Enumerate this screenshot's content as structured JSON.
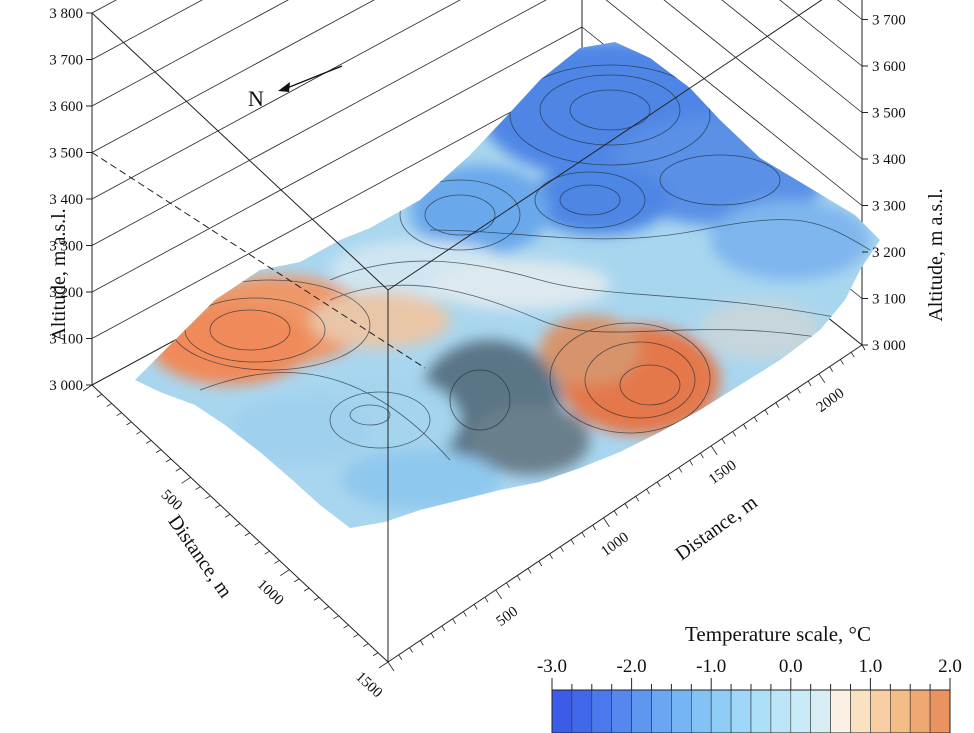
{
  "chart_data": {
    "type": "surface-3d",
    "title": "",
    "north_label": "N",
    "z_axis": {
      "label": "Altitude, m a.s.l.",
      "range": [
        3000,
        3800
      ],
      "tick_values": [
        3000,
        3100,
        3200,
        3300,
        3400,
        3500,
        3600,
        3700,
        3800
      ],
      "tick_labels": [
        "3 000",
        "3 100",
        "3 200",
        "3 300",
        "3 400",
        "3 500",
        "3 600",
        "3 700",
        "3 800"
      ]
    },
    "x_axis": {
      "label": "Distance, m",
      "range": [
        0,
        1500
      ],
      "tick_values": [
        500,
        1000,
        1500
      ],
      "tick_labels": [
        "500",
        "1000",
        "1500"
      ]
    },
    "y_axis": {
      "label": "Distance, m",
      "range": [
        0,
        2200
      ],
      "tick_values": [
        500,
        1000,
        1500,
        2000
      ],
      "tick_labels": [
        "500",
        "1000",
        "1500",
        "2000"
      ]
    },
    "colorbar": {
      "title": "Temperature scale, °C",
      "range": [
        -3.0,
        2.0
      ],
      "tick_values": [
        -3.0,
        -2.0,
        -1.0,
        0.0,
        1.0,
        2.0
      ],
      "tick_labels": [
        "-3.0",
        "-2.0",
        "-1.0",
        "0.0",
        "1.0",
        "2.0"
      ],
      "step": 0.25,
      "colors": [
        "#3a5ce8",
        "#4268ea",
        "#4b78ec",
        "#5587ee",
        "#5f96f0",
        "#6aa6f2",
        "#76b5f3",
        "#83c2f5",
        "#90cdf6",
        "#9ed7f7",
        "#ace0f8",
        "#bae6f8",
        "#c9ebf7",
        "#d8eef4",
        "#fbf0e4",
        "#fae1c2",
        "#f7cfa2",
        "#f4bc87",
        "#f0a872",
        "#eb9360"
      ]
    }
  }
}
